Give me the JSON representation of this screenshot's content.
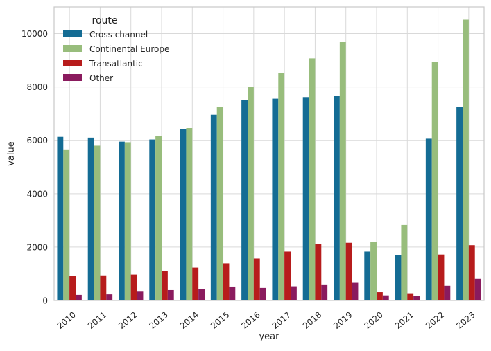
{
  "chart_data": {
    "type": "bar",
    "title": "",
    "xlabel": "year",
    "ylabel": "value",
    "ylim": [
      0,
      11000
    ],
    "yticks": [
      0,
      2000,
      4000,
      6000,
      8000,
      10000
    ],
    "grid": true,
    "legend": {
      "title": "route",
      "placement": "top-left"
    },
    "categories": [
      "2010",
      "2011",
      "2012",
      "2013",
      "2014",
      "2015",
      "2016",
      "2017",
      "2018",
      "2019",
      "2020",
      "2021",
      "2022",
      "2023"
    ],
    "series": [
      {
        "name": "Cross channel",
        "color": "#146c94",
        "values": [
          6130,
          6100,
          5950,
          6030,
          6420,
          6960,
          7510,
          7560,
          7620,
          7660,
          1830,
          1710,
          6060,
          7250
        ]
      },
      {
        "name": "Continental Europe",
        "color": "#98bd7c",
        "values": [
          5660,
          5800,
          5930,
          6150,
          6460,
          7250,
          8010,
          8510,
          9070,
          9700,
          2180,
          2830,
          8940,
          10520
        ]
      },
      {
        "name": "Transatlantic",
        "color": "#b71c1c",
        "values": [
          920,
          940,
          970,
          1100,
          1230,
          1390,
          1570,
          1830,
          2110,
          2160,
          310,
          270,
          1720,
          2070
        ]
      },
      {
        "name": "Other",
        "color": "#8a1b5e",
        "values": [
          210,
          230,
          330,
          390,
          430,
          520,
          470,
          530,
          600,
          660,
          190,
          160,
          550,
          810
        ]
      }
    ]
  }
}
